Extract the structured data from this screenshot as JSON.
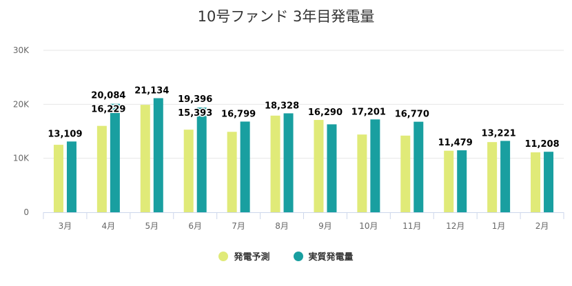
{
  "chart_data": {
    "type": "bar",
    "title": "10号ファンド 3年目発電量",
    "categories": [
      "3月",
      "4月",
      "5月",
      "6月",
      "7月",
      "8月",
      "9月",
      "10月",
      "11月",
      "12月",
      "1月",
      "2月"
    ],
    "series": [
      {
        "name": "発電予測",
        "color": "#e0ea78",
        "values": [
          12500,
          16000,
          19900,
          15300,
          14900,
          17900,
          17100,
          14400,
          14200,
          11400,
          13000,
          11100
        ]
      },
      {
        "name": "実質発電量",
        "color": "#199fa0",
        "values": [
          13109,
          20084,
          21134,
          19396,
          16799,
          18328,
          16290,
          17201,
          16770,
          11479,
          13221,
          11208
        ]
      }
    ],
    "data_labels": [
      "13,109",
      "16,229",
      "21,134",
      "15,393",
      "16,799",
      "18,328",
      "16,290",
      "17,201",
      "16,770",
      "11,479",
      "13,221",
      "11,208"
    ],
    "extra_labels": [
      {
        "category_index": 1,
        "text": "20,084"
      },
      {
        "category_index": 3,
        "text": "19,396"
      }
    ],
    "y_ticks": [
      {
        "value": 0,
        "label": "0"
      },
      {
        "value": 10000,
        "label": "10K"
      },
      {
        "value": 20000,
        "label": "20K"
      },
      {
        "value": 30000,
        "label": "30K"
      }
    ],
    "ylim": [
      0,
      30000
    ],
    "grid": true,
    "legend_position": "bottom-center"
  }
}
